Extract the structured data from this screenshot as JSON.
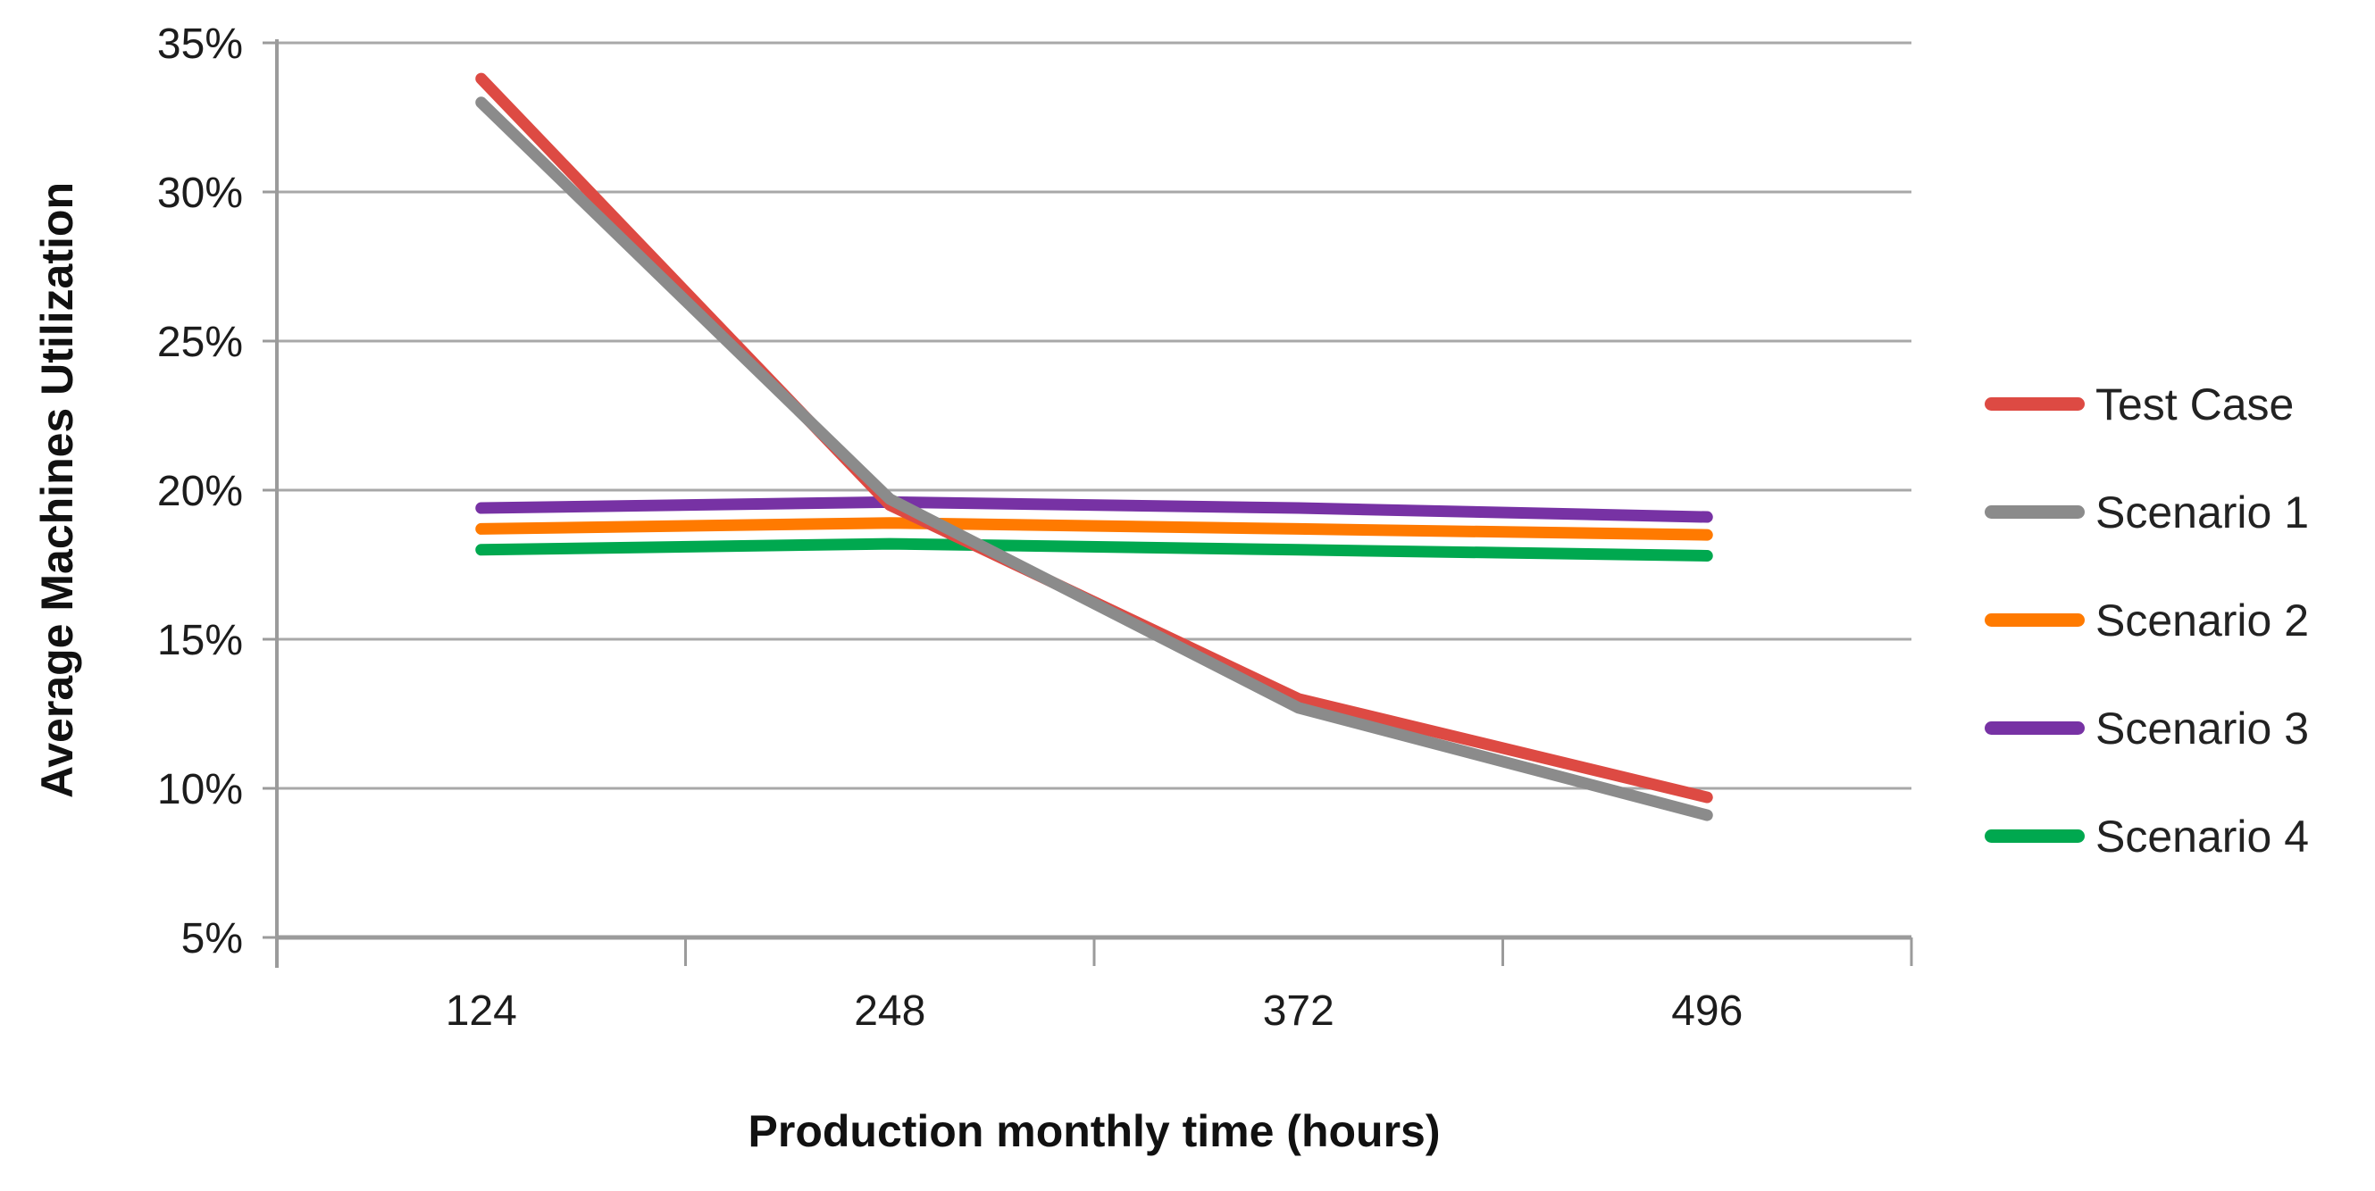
{
  "chart_data": {
    "type": "line",
    "title": "",
    "xlabel": "Production monthly time (hours)",
    "ylabel": "Average Machines Utilization",
    "categories": [
      "124",
      "248",
      "372",
      "496"
    ],
    "y_ticks": [
      "35%",
      "30%",
      "25%",
      "20%",
      "15%",
      "10%",
      "5%"
    ],
    "y_tick_values": [
      35,
      30,
      25,
      20,
      15,
      10,
      5
    ],
    "ylim": [
      5,
      35
    ],
    "value_unit": "%",
    "grid": "horizontal",
    "legend_position": "right",
    "series": [
      {
        "name": "Test Case",
        "color": "#DD4A43",
        "values": [
          33.8,
          19.5,
          13.0,
          9.7
        ]
      },
      {
        "name": "Scenario 1",
        "color": "#8B8B8B",
        "values": [
          33.0,
          19.7,
          12.7,
          9.1
        ]
      },
      {
        "name": "Scenario 2",
        "color": "#FF7A00",
        "values": [
          18.7,
          18.9,
          18.7,
          18.5
        ]
      },
      {
        "name": "Scenario 3",
        "color": "#7732A4",
        "values": [
          19.4,
          19.6,
          19.4,
          19.1
        ]
      },
      {
        "name": "Scenario 4",
        "color": "#00A84F",
        "values": [
          18.0,
          18.2,
          18.0,
          17.8
        ]
      }
    ]
  },
  "colors": {
    "background": "#FFFFFF",
    "gridline": "#A8A8A8",
    "axis_line": "#9B9B9B",
    "tick_text": "#1C1C1C"
  }
}
